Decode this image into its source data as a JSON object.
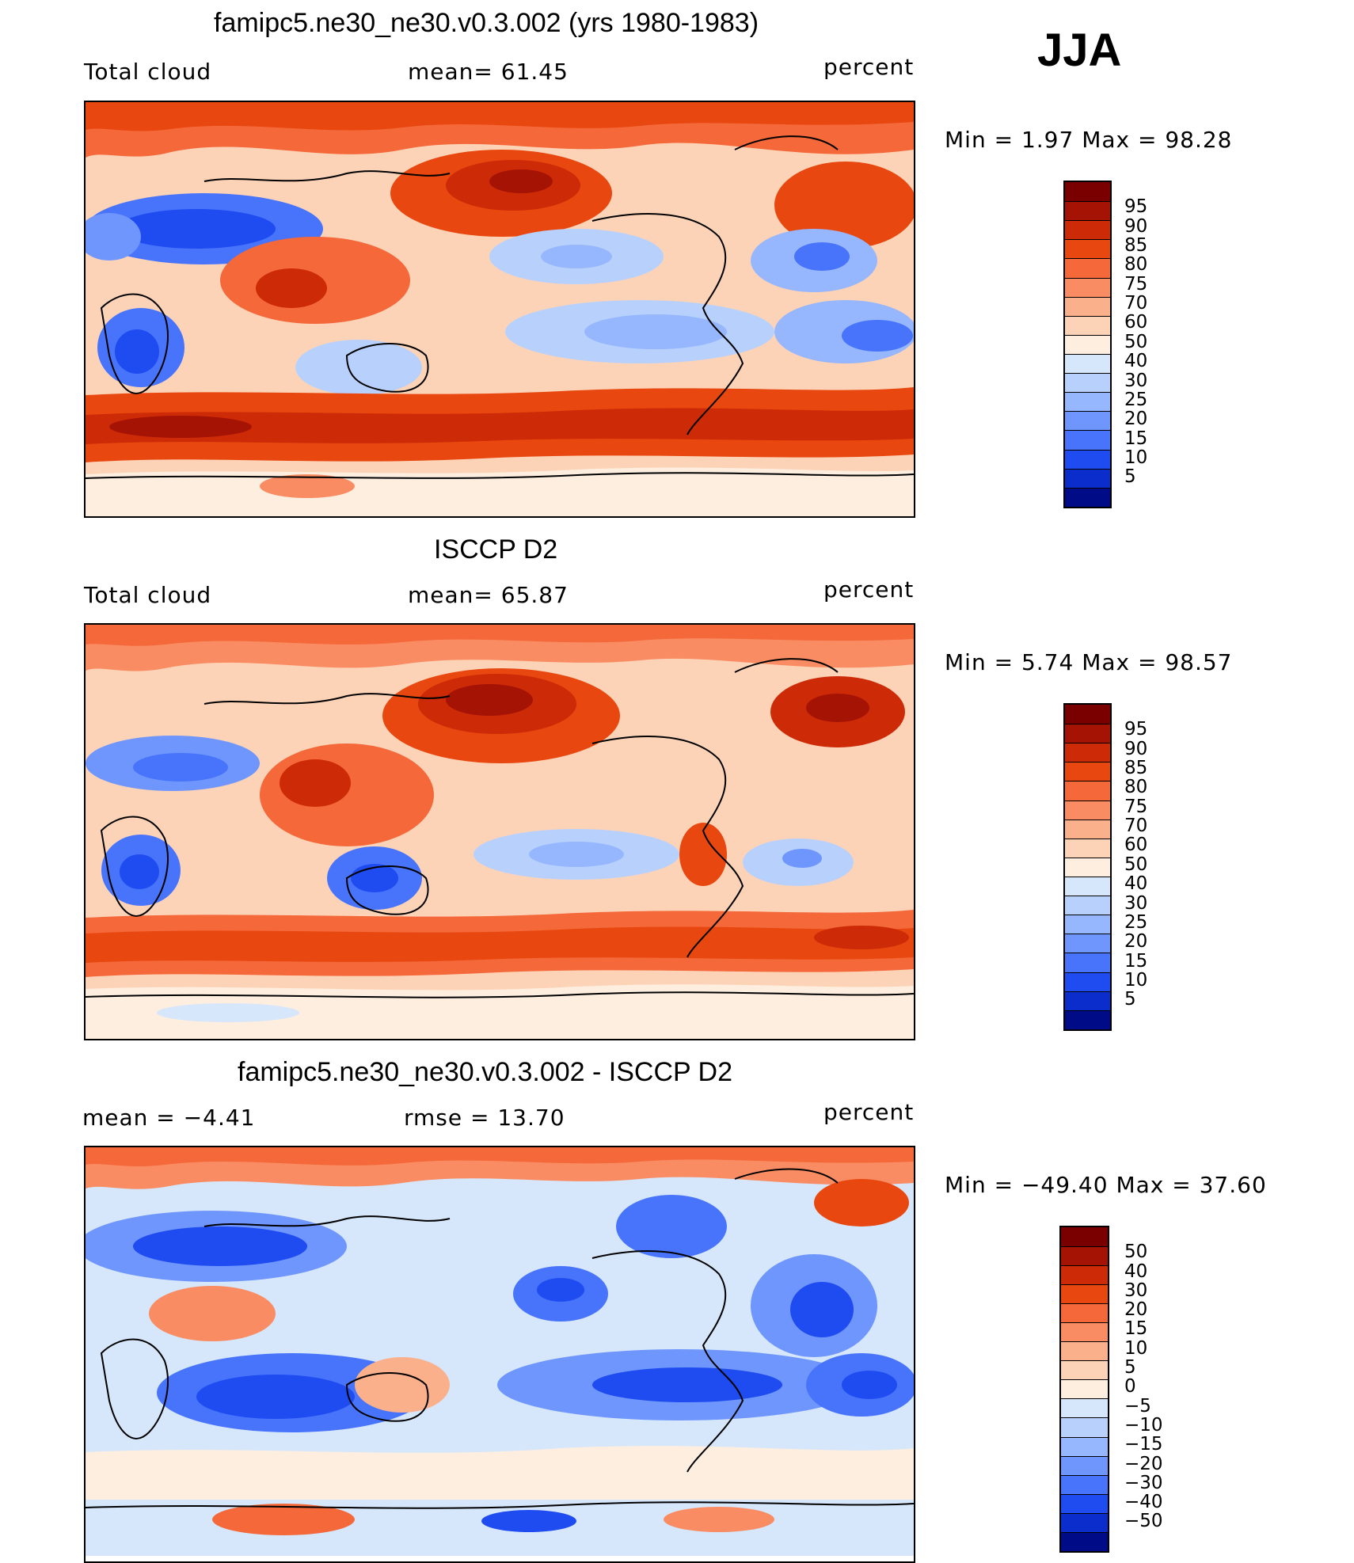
{
  "season": "JJA",
  "panels": [
    {
      "title": "famipc5.ne30_ne30.v0.3.002 (yrs 1980-1983)",
      "left_label": "Total cloud",
      "mid_label": "mean=   61.45",
      "units": "percent",
      "minmax": "Min  =     1.97  Max  =    98.28",
      "colorbar": {
        "colors": [
          "#7a0000",
          "#a51305",
          "#cd2a07",
          "#e8470f",
          "#f4683a",
          "#f98c62",
          "#fbb08c",
          "#fdd3b7",
          "#fdeee0",
          "#d6e6fb",
          "#b8d1fc",
          "#96b6fd",
          "#6f96fc",
          "#4774fb",
          "#1f4cf1",
          "#0a2dcb",
          "#000b87"
        ],
        "labels": [
          "95",
          "90",
          "85",
          "80",
          "75",
          "70",
          "60",
          "50",
          "40",
          "30",
          "25",
          "20",
          "15",
          "10",
          "5"
        ]
      }
    },
    {
      "title": "ISCCP D2",
      "left_label": "Total cloud",
      "mid_label": "mean=   65.87",
      "units": "percent",
      "minmax": "Min  =     5.74  Max  =    98.57",
      "colorbar": {
        "colors": [
          "#7a0000",
          "#a51305",
          "#cd2a07",
          "#e8470f",
          "#f4683a",
          "#f98c62",
          "#fbb08c",
          "#fdd3b7",
          "#fdeee0",
          "#d6e6fb",
          "#b8d1fc",
          "#96b6fd",
          "#6f96fc",
          "#4774fb",
          "#1f4cf1",
          "#0a2dcb",
          "#000b87"
        ],
        "labels": [
          "95",
          "90",
          "85",
          "80",
          "75",
          "70",
          "60",
          "50",
          "40",
          "30",
          "25",
          "20",
          "15",
          "10",
          "5"
        ]
      }
    },
    {
      "title": "famipc5.ne30_ne30.v0.3.002 - ISCCP D2",
      "left_label": "mean  =    −4.41",
      "mid_label": "rmse  =    13.70",
      "units": "percent",
      "minmax": "Min  = −49.40  Max  =    37.60",
      "colorbar": {
        "colors": [
          "#7a0000",
          "#a51305",
          "#cd2a07",
          "#e8470f",
          "#f4683a",
          "#f98c62",
          "#fbb08c",
          "#fdd3b7",
          "#fdeee0",
          "#d6e6fb",
          "#b8d1fc",
          "#96b6fd",
          "#6f96fc",
          "#4774fb",
          "#1f4cf1",
          "#0a2dcb",
          "#000b87"
        ],
        "labels": [
          "50",
          "40",
          "30",
          "20",
          "15",
          "10",
          "5",
          "0",
          "−5",
          "−10",
          "−15",
          "−20",
          "−30",
          "−40",
          "−50"
        ]
      }
    }
  ]
}
